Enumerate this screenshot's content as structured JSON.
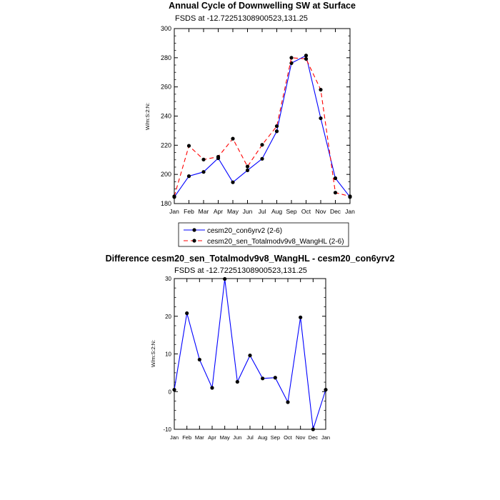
{
  "chart_data": [
    {
      "type": "line",
      "title": "Annual Cycle of Downwelling SW at Surface",
      "subtitle": "FSDS at -12.72251308900523,131.25",
      "ylabel": "W/m:S:2:N:",
      "xlabel": "",
      "ylim": [
        180,
        300
      ],
      "yticks": [
        180,
        200,
        220,
        240,
        260,
        280,
        300
      ],
      "categories": [
        "Jan",
        "Feb",
        "Mar",
        "Apr",
        "May",
        "Jun",
        "Jul",
        "Aug",
        "Sep",
        "Oct",
        "Nov",
        "Dec",
        "Jan"
      ],
      "legend_position": "bottom",
      "grid": false,
      "series": [
        {
          "name": "cesm20_con6yrv2 (2-6)",
          "color": "#0000ff",
          "dash": "solid",
          "values": [
            184.5,
            198.8,
            201.7,
            211.1,
            194.6,
            202.8,
            210.7,
            229.6,
            276.3,
            281.5,
            238.5,
            197.4,
            184.5
          ]
        },
        {
          "name": "cesm20_sen_Totalmodv9v8_WangHL (2-6)",
          "color": "#ff0000",
          "dash": "dashed",
          "values": [
            185.0,
            219.6,
            210.2,
            212.1,
            224.5,
            205.4,
            220.3,
            233.1,
            280.0,
            279.2,
            258.1,
            187.5,
            185.0
          ]
        }
      ]
    },
    {
      "type": "line",
      "title": "Difference cesm20_sen_Totalmodv9v8_WangHL - cesm20_con6yrv2",
      "subtitle": "FSDS at -12.72251308900523,131.25",
      "ylabel": "W/m:S:2:N:",
      "xlabel": "",
      "ylim": [
        -10,
        30
      ],
      "yticks": [
        -10,
        0,
        10,
        20,
        30
      ],
      "categories": [
        "Jan",
        "Feb",
        "Mar",
        "Apr",
        "May",
        "Jun",
        "Jul",
        "Aug",
        "Sep",
        "Oct",
        "Nov",
        "Dec",
        "Jan"
      ],
      "grid": false,
      "series": [
        {
          "name": "",
          "color": "#0000ff",
          "dash": "solid",
          "values": [
            0.5,
            20.8,
            8.5,
            1.0,
            29.9,
            2.6,
            9.6,
            3.5,
            3.7,
            -2.8,
            19.7,
            -10.0,
            0.5
          ]
        }
      ]
    }
  ]
}
